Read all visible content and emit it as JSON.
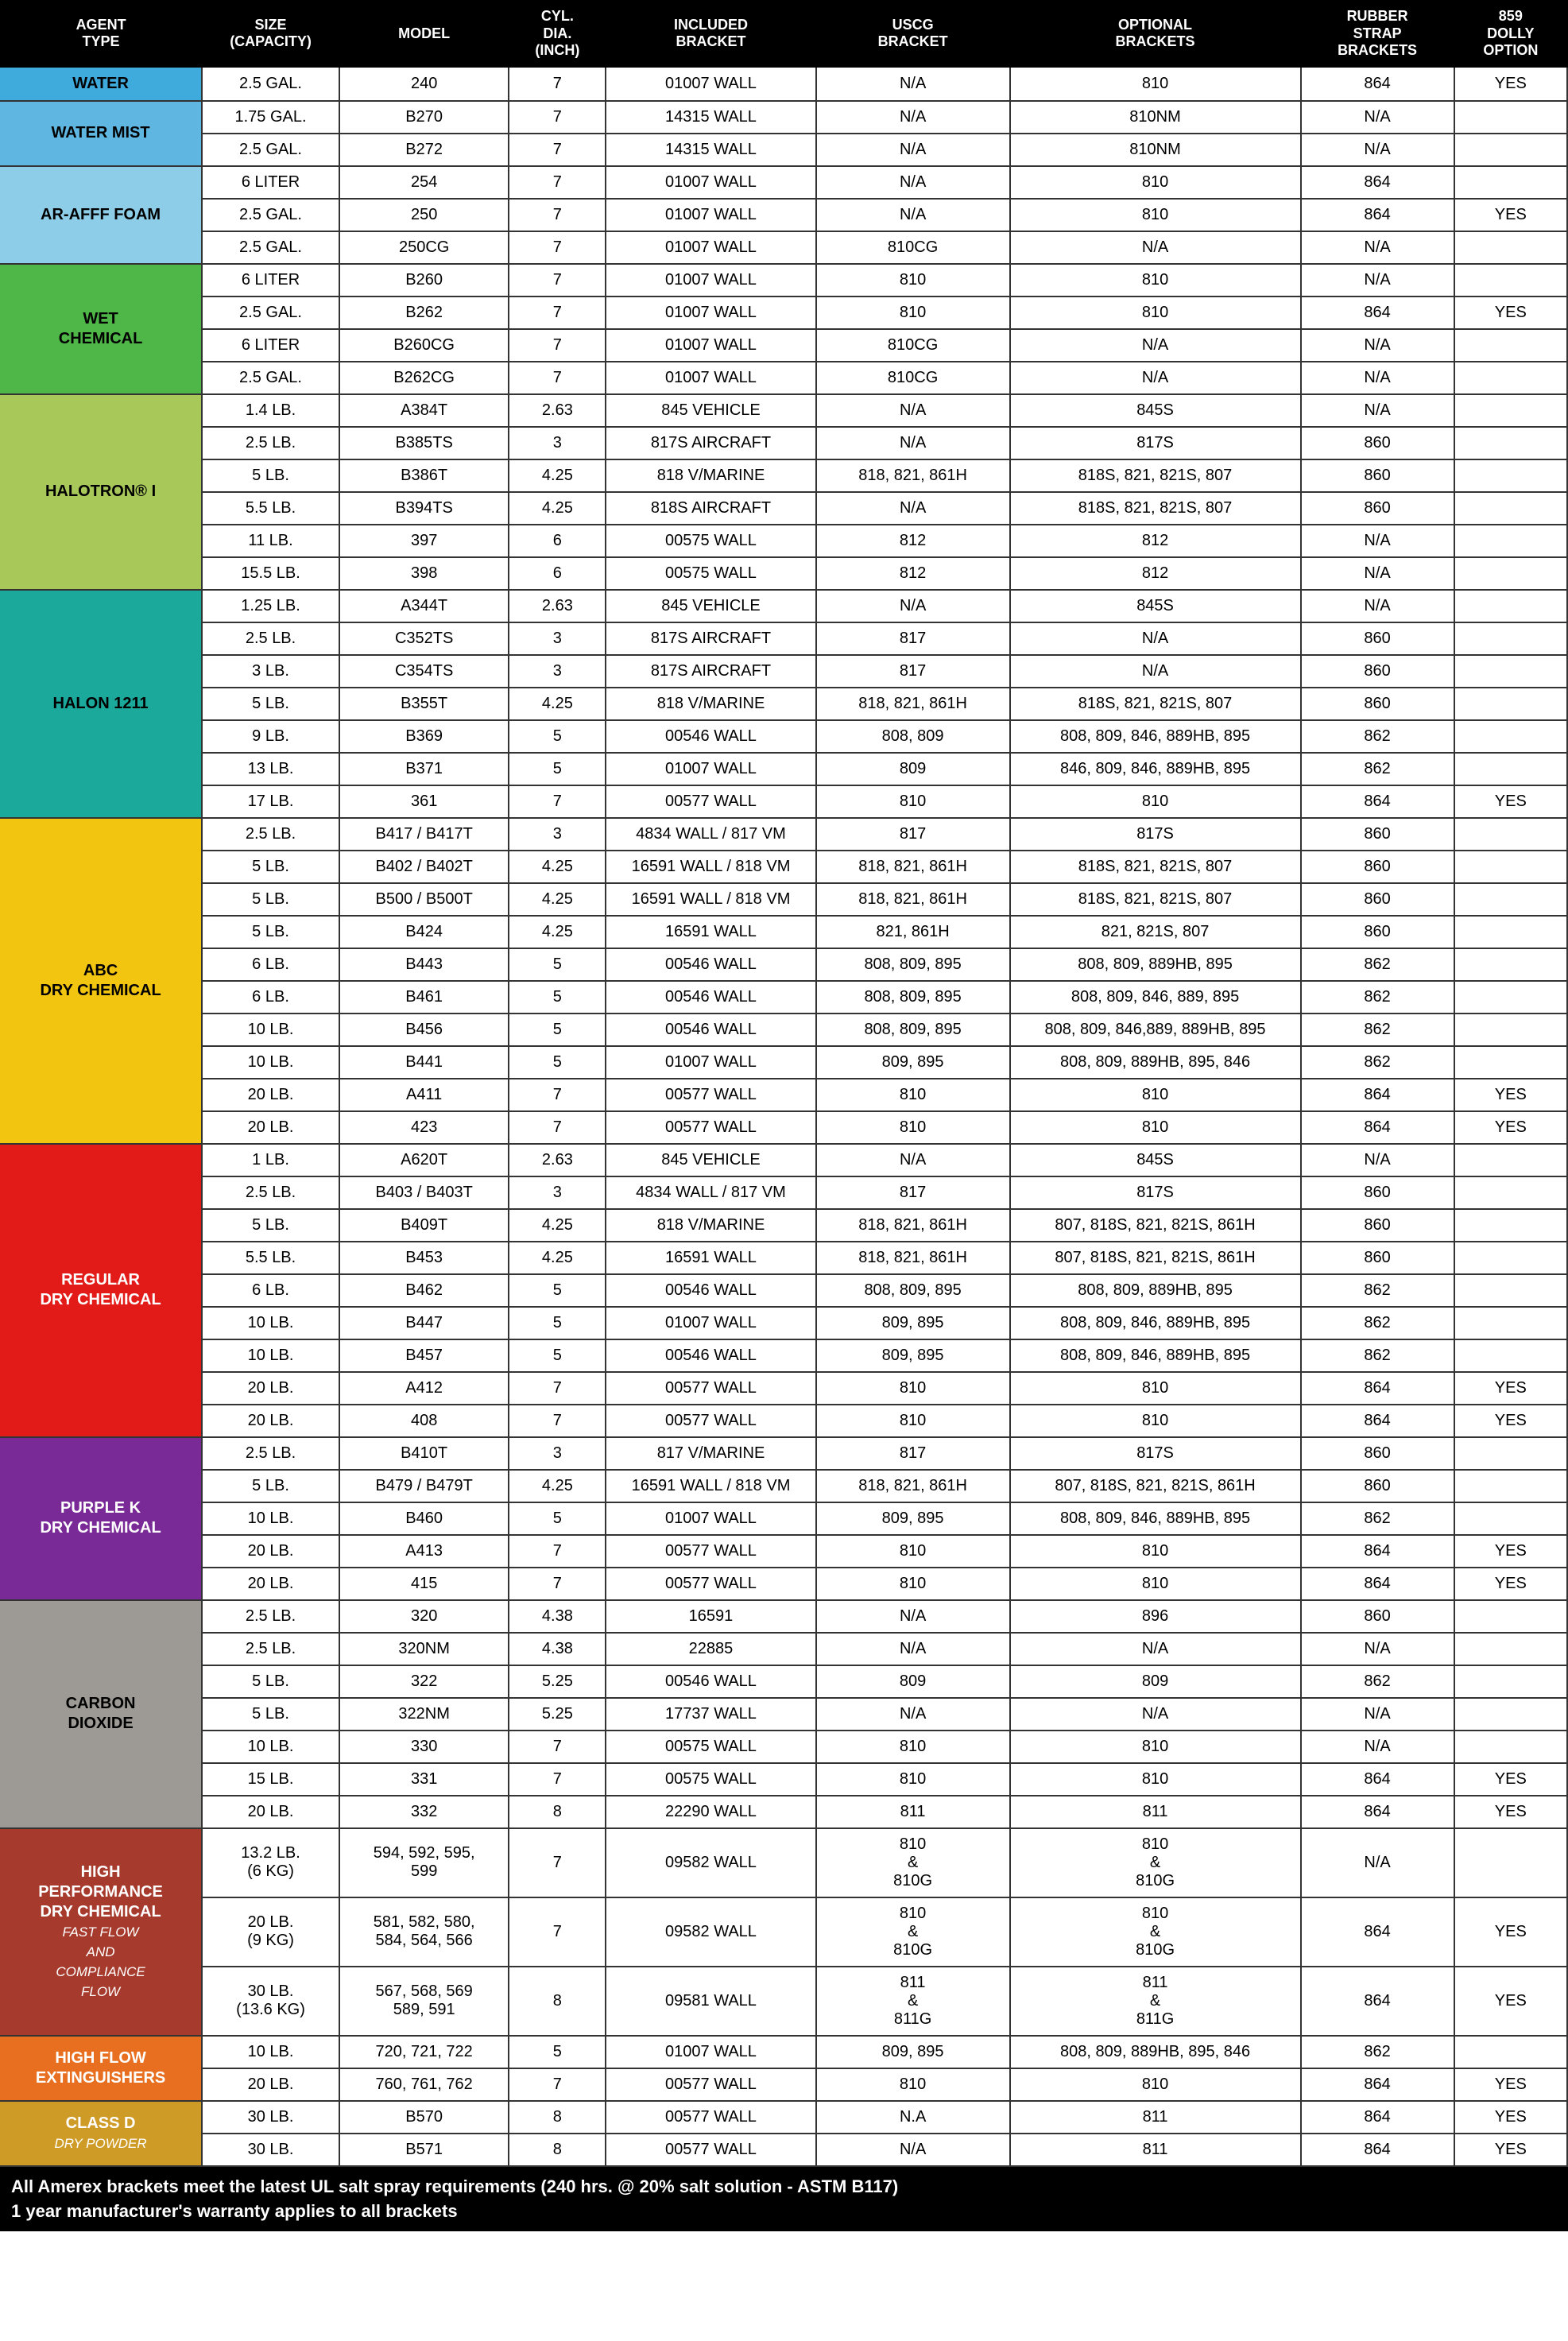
{
  "headers": [
    "AGENT\nTYPE",
    "SIZE\n(CAPACITY)",
    "MODEL",
    "CYL.\nDIA.\n(INCH)",
    "INCLUDED\nBRACKET",
    "USCG\nBRACKET",
    "OPTIONAL\nBRACKETS",
    "RUBBER\nSTRAP\nBRACKETS",
    "859\nDOLLY\nOPTION"
  ],
  "footer": [
    "All Amerex brackets meet the latest UL salt spray requirements (240 hrs. @ 20% salt solution - ASTM B117)",
    "1 year manufacturer's warranty applies to all brackets"
  ],
  "groups": [
    {
      "label": "WATER",
      "color": "#3faadc",
      "txt": "#000",
      "rows": [
        [
          "2.5 GAL.",
          "240",
          "7",
          "01007 WALL",
          "N/A",
          "810",
          "864",
          "YES"
        ]
      ]
    },
    {
      "label": "WATER MIST",
      "color": "#5fb6e0",
      "txt": "#000",
      "rows": [
        [
          "1.75 GAL.",
          "B270",
          "7",
          "14315 WALL",
          "N/A",
          "810NM",
          "N/A",
          ""
        ],
        [
          "2.5 GAL.",
          "B272",
          "7",
          "14315 WALL",
          "N/A",
          "810NM",
          "N/A",
          ""
        ]
      ]
    },
    {
      "label": "AR-AFFF FOAM",
      "color": "#8ecde8",
      "txt": "#000",
      "rows": [
        [
          "6 LITER",
          "254",
          "7",
          "01007 WALL",
          "N/A",
          "810",
          "864",
          ""
        ],
        [
          "2.5 GAL.",
          "250",
          "7",
          "01007 WALL",
          "N/A",
          "810",
          "864",
          "YES"
        ],
        [
          "2.5 GAL.",
          "250CG",
          "7",
          "01007 WALL",
          "810CG",
          "N/A",
          "N/A",
          ""
        ]
      ]
    },
    {
      "label": "WET\nCHEMICAL",
      "color": "#4fb648",
      "txt": "#000",
      "rows": [
        [
          "6 LITER",
          "B260",
          "7",
          "01007 WALL",
          "810",
          "810",
          "N/A",
          ""
        ],
        [
          "2.5 GAL.",
          "B262",
          "7",
          "01007 WALL",
          "810",
          "810",
          "864",
          "YES"
        ],
        [
          "6 LITER",
          "B260CG",
          "7",
          "01007 WALL",
          "810CG",
          "N/A",
          "N/A",
          ""
        ],
        [
          "2.5 GAL.",
          "B262CG",
          "7",
          "01007 WALL",
          "810CG",
          "N/A",
          "N/A",
          ""
        ]
      ]
    },
    {
      "label": "HALOTRON® I",
      "color": "#a8c95a",
      "txt": "#000",
      "rows": [
        [
          "1.4 LB.",
          "A384T",
          "2.63",
          "845 VEHICLE",
          "N/A",
          "845S",
          "N/A",
          ""
        ],
        [
          "2.5 LB.",
          "B385TS",
          "3",
          "817S AIRCRAFT",
          "N/A",
          "817S",
          "860",
          ""
        ],
        [
          "5 LB.",
          "B386T",
          "4.25",
          "818 V/MARINE",
          "818, 821, 861H",
          "818S, 821, 821S, 807",
          "860",
          ""
        ],
        [
          "5.5 LB.",
          "B394TS",
          "4.25",
          "818S AIRCRAFT",
          "N/A",
          "818S, 821, 821S, 807",
          "860",
          ""
        ],
        [
          "11 LB.",
          "397",
          "6",
          "00575 WALL",
          "812",
          "812",
          "N/A",
          ""
        ],
        [
          "15.5 LB.",
          "398",
          "6",
          "00575 WALL",
          "812",
          "812",
          "N/A",
          ""
        ]
      ]
    },
    {
      "label": "HALON 1211",
      "color": "#1aa99a",
      "txt": "#000",
      "rows": [
        [
          "1.25 LB.",
          "A344T",
          "2.63",
          "845 VEHICLE",
          "N/A",
          "845S",
          "N/A",
          ""
        ],
        [
          "2.5 LB.",
          "C352TS",
          "3",
          "817S AIRCRAFT",
          "817",
          "N/A",
          "860",
          ""
        ],
        [
          "3 LB.",
          "C354TS",
          "3",
          "817S AIRCRAFT",
          "817",
          "N/A",
          "860",
          ""
        ],
        [
          "5 LB.",
          "B355T",
          "4.25",
          "818 V/MARINE",
          "818, 821, 861H",
          "818S, 821, 821S, 807",
          "860",
          ""
        ],
        [
          "9 LB.",
          "B369",
          "5",
          "00546 WALL",
          "808, 809",
          "808, 809, 846, 889HB, 895",
          "862",
          ""
        ],
        [
          "13 LB.",
          "B371",
          "5",
          "01007 WALL",
          "809",
          "846, 809, 846, 889HB, 895",
          "862",
          ""
        ],
        [
          "17 LB.",
          "361",
          "7",
          "00577 WALL",
          "810",
          "810",
          "864",
          "YES"
        ]
      ]
    },
    {
      "label": "ABC\nDRY CHEMICAL",
      "color": "#f2c511",
      "txt": "#000",
      "rows": [
        [
          "2.5 LB.",
          "B417 / B417T",
          "3",
          "4834 WALL / 817 VM",
          "817",
          "817S",
          "860",
          ""
        ],
        [
          "5 LB.",
          "B402 / B402T",
          "4.25",
          "16591 WALL / 818 VM",
          "818, 821, 861H",
          "818S, 821, 821S, 807",
          "860",
          ""
        ],
        [
          "5 LB.",
          "B500 / B500T",
          "4.25",
          "16591 WALL / 818 VM",
          "818, 821, 861H",
          "818S, 821, 821S, 807",
          "860",
          ""
        ],
        [
          "5 LB.",
          "B424",
          "4.25",
          "16591 WALL",
          "821, 861H",
          "821, 821S, 807",
          "860",
          ""
        ],
        [
          "6 LB.",
          "B443",
          "5",
          "00546 WALL",
          "808, 809, 895",
          "808, 809, 889HB, 895",
          "862",
          ""
        ],
        [
          "6 LB.",
          "B461",
          "5",
          "00546 WALL",
          "808, 809, 895",
          "808, 809, 846, 889, 895",
          "862",
          ""
        ],
        [
          "10 LB.",
          "B456",
          "5",
          "00546 WALL",
          "808, 809, 895",
          "808, 809, 846,889, 889HB, 895",
          "862",
          ""
        ],
        [
          "10 LB.",
          "B441",
          "5",
          "01007 WALL",
          "809, 895",
          "808, 809, 889HB, 895, 846",
          "862",
          ""
        ],
        [
          "20 LB.",
          "A411",
          "7",
          "00577 WALL",
          "810",
          "810",
          "864",
          "YES"
        ],
        [
          "20 LB.",
          "423",
          "7",
          "00577 WALL",
          "810",
          "810",
          "864",
          "YES"
        ]
      ]
    },
    {
      "label": "REGULAR\nDRY CHEMICAL",
      "color": "#e31b18",
      "txt": "#fff",
      "rows": [
        [
          "1 LB.",
          "A620T",
          "2.63",
          "845 VEHICLE",
          "N/A",
          "845S",
          "N/A",
          ""
        ],
        [
          "2.5 LB.",
          "B403 / B403T",
          "3",
          "4834 WALL / 817 VM",
          "817",
          "817S",
          "860",
          ""
        ],
        [
          "5 LB.",
          "B409T",
          "4.25",
          "818 V/MARINE",
          "818, 821, 861H",
          "807, 818S, 821, 821S, 861H",
          "860",
          ""
        ],
        [
          "5.5 LB.",
          "B453",
          "4.25",
          "16591 WALL",
          "818, 821, 861H",
          "807, 818S, 821, 821S, 861H",
          "860",
          ""
        ],
        [
          "6 LB.",
          "B462",
          "5",
          "00546 WALL",
          "808, 809, 895",
          "808, 809, 889HB, 895",
          "862",
          ""
        ],
        [
          "10 LB.",
          "B447",
          "5",
          "01007 WALL",
          "809, 895",
          "808, 809, 846, 889HB, 895",
          "862",
          ""
        ],
        [
          "10 LB.",
          "B457",
          "5",
          "00546 WALL",
          "809, 895",
          "808, 809, 846, 889HB, 895",
          "862",
          ""
        ],
        [
          "20 LB.",
          "A412",
          "7",
          "00577 WALL",
          "810",
          "810",
          "864",
          "YES"
        ],
        [
          "20 LB.",
          "408",
          "7",
          "00577 WALL",
          "810",
          "810",
          "864",
          "YES"
        ]
      ]
    },
    {
      "label": "PURPLE K\nDRY CHEMICAL",
      "color": "#7a2a97",
      "txt": "#fff",
      "rows": [
        [
          "2.5 LB.",
          "B410T",
          "3",
          "817 V/MARINE",
          "817",
          "817S",
          "860",
          ""
        ],
        [
          "5 LB.",
          "B479 / B479T",
          "4.25",
          "16591 WALL / 818 VM",
          "818, 821, 861H",
          "807, 818S, 821, 821S, 861H",
          "860",
          ""
        ],
        [
          "10 LB.",
          "B460",
          "5",
          "01007 WALL",
          "809, 895",
          "808, 809, 846, 889HB, 895",
          "862",
          ""
        ],
        [
          "20 LB.",
          "A413",
          "7",
          "00577 WALL",
          "810",
          "810",
          "864",
          "YES"
        ],
        [
          "20 LB.",
          "415",
          "7",
          "00577 WALL",
          "810",
          "810",
          "864",
          "YES"
        ]
      ]
    },
    {
      "label": "CARBON\nDIOXIDE",
      "color": "#9d9a95",
      "txt": "#000",
      "rows": [
        [
          "2.5 LB.",
          "320",
          "4.38",
          "16591",
          "N/A",
          "896",
          "860",
          ""
        ],
        [
          "2.5 LB.",
          "320NM",
          "4.38",
          "22885",
          "N/A",
          "N/A",
          "N/A",
          ""
        ],
        [
          "5 LB.",
          "322",
          "5.25",
          "00546 WALL",
          "809",
          "809",
          "862",
          ""
        ],
        [
          "5 LB.",
          "322NM",
          "5.25",
          "17737 WALL",
          "N/A",
          "N/A",
          "N/A",
          ""
        ],
        [
          "10 LB.",
          "330",
          "7",
          "00575 WALL",
          "810",
          "810",
          "N/A",
          ""
        ],
        [
          "15 LB.",
          "331",
          "7",
          "00575 WALL",
          "810",
          "810",
          "864",
          "YES"
        ],
        [
          "20 LB.",
          "332",
          "8",
          "22290 WALL",
          "811",
          "811",
          "864",
          "YES"
        ]
      ]
    },
    {
      "label": "HIGH\nPERFORMANCE\nDRY CHEMICAL",
      "sub": "FAST FLOW\nAND\nCOMPLIANCE\nFLOW",
      "color": "#a63a2c",
      "txt": "#fff",
      "rows": [
        [
          "13.2 LB.\n(6 KG)",
          "594, 592, 595,\n599",
          "7",
          "09582 WALL",
          "810\n&\n810G",
          "810\n&\n810G",
          "N/A",
          ""
        ],
        [
          "20 LB.\n(9 KG)",
          "581, 582, 580,\n584, 564, 566",
          "7",
          "09582 WALL",
          "810\n&\n810G",
          "810\n&\n810G",
          "864",
          "YES"
        ],
        [
          "30 LB.\n(13.6 KG)",
          "567, 568, 569\n589, 591",
          "8",
          "09581 WALL",
          "811\n&\n811G",
          "811\n&\n811G",
          "864",
          "YES"
        ]
      ]
    },
    {
      "label": "HIGH FLOW\nEXTINGUISHERS",
      "color": "#e86f1f",
      "txt": "#fff",
      "rows": [
        [
          "10 LB.",
          "720, 721, 722",
          "5",
          "01007 WALL",
          "809, 895",
          "808, 809, 889HB, 895, 846",
          "862",
          ""
        ],
        [
          "20 LB.",
          "760, 761, 762",
          "7",
          "00577 WALL",
          "810",
          "810",
          "864",
          "YES"
        ]
      ]
    },
    {
      "label": "CLASS D",
      "sub": "DRY POWDER",
      "color": "#cf9b27",
      "txt": "#fff",
      "rows": [
        [
          "30 LB.",
          "B570",
          "8",
          "00577 WALL",
          "N.A",
          "811",
          "864",
          "YES"
        ],
        [
          "30 LB.",
          "B571",
          "8",
          "00577 WALL",
          "N/A",
          "811",
          "864",
          "YES"
        ]
      ]
    }
  ]
}
